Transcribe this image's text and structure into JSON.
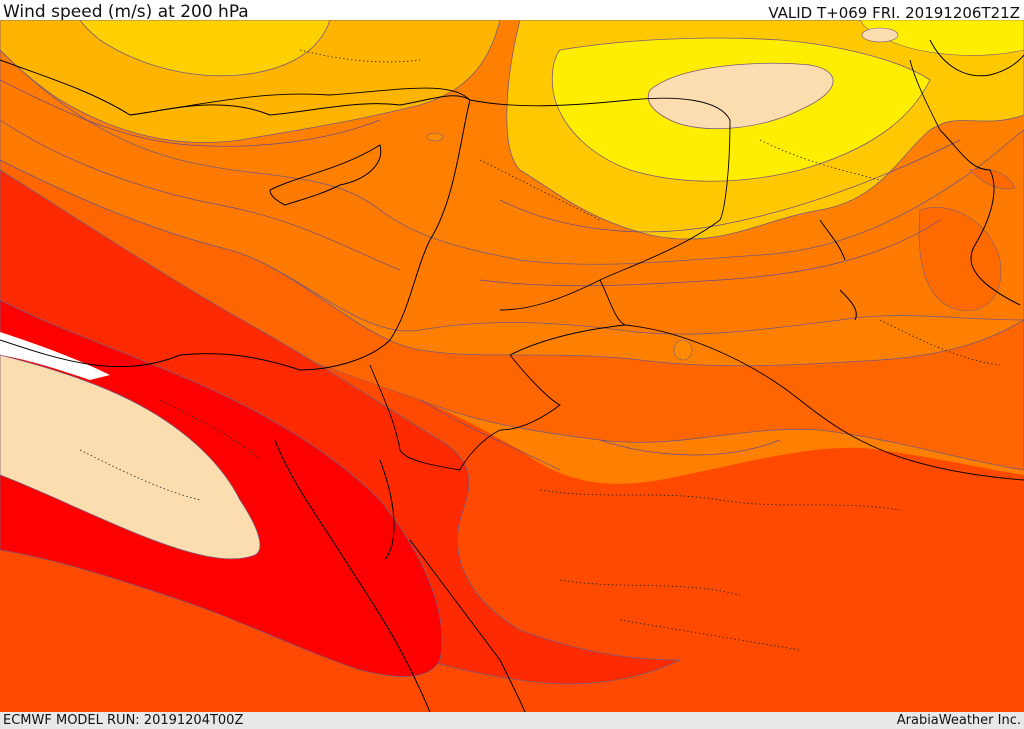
{
  "header": {
    "title": "Wind speed (m/s) at 200 hPa",
    "valid": "VALID T+069 FRI. 20191206T21Z"
  },
  "footer": {
    "model_run": "ECMWF MODEL RUN: 20191204T00Z",
    "credit": "ArabiaWeather Inc."
  },
  "map": {
    "field": "wind speed",
    "level": "200 hPa",
    "colors": {
      "wind_speed_bands": [
        "#ffff00",
        "#ffd500",
        "#ffc300",
        "#ffa500",
        "#ff8c00",
        "#ff7800",
        "#ff5a00",
        "#ff4000",
        "#ff2200",
        "#ff0000"
      ],
      "jet_core": "#fcddb0",
      "low_wind_core": "#fcddb0",
      "contour_line": "#6a4a8a",
      "coastline": "#000000",
      "border": "#000000"
    },
    "icons": [
      "coastline-overlay",
      "country-borders-overlay",
      "admin-boundaries-overlay"
    ]
  }
}
